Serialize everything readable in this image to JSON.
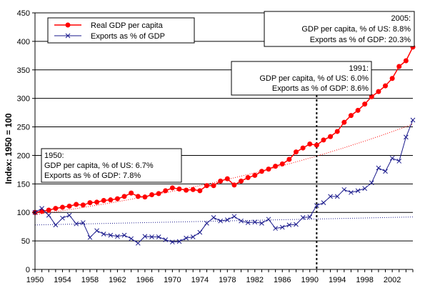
{
  "chart_data": {
    "type": "line",
    "ylabel": "Index: 1950 = 100",
    "xlim": [
      1950,
      2005
    ],
    "ylim": [
      0,
      450
    ],
    "yticks": [
      0,
      50,
      100,
      150,
      200,
      250,
      300,
      350,
      400,
      450
    ],
    "xticks": [
      1950,
      1954,
      1958,
      1962,
      1966,
      1970,
      1974,
      1978,
      1982,
      1986,
      1990,
      1994,
      1998,
      2002
    ],
    "grid": "horizontal",
    "legend_position": "top-left",
    "marker_year": 1991,
    "x": [
      1950,
      1951,
      1952,
      1953,
      1954,
      1955,
      1956,
      1957,
      1958,
      1959,
      1960,
      1961,
      1962,
      1963,
      1964,
      1965,
      1966,
      1967,
      1968,
      1969,
      1970,
      1971,
      1972,
      1973,
      1974,
      1975,
      1976,
      1977,
      1978,
      1979,
      1980,
      1981,
      1982,
      1983,
      1984,
      1985,
      1986,
      1987,
      1988,
      1989,
      1990,
      1991,
      1992,
      1993,
      1994,
      1995,
      1996,
      1997,
      1998,
      1999,
      2000,
      2001,
      2002,
      2003,
      2004,
      2005
    ],
    "series": [
      {
        "name": "Real GDP per capita",
        "color": "#ff0000",
        "marker": "circle",
        "values": [
          100,
          102,
          104,
          107,
          109,
          111,
          114,
          113,
          117,
          118,
          121,
          122,
          124,
          128,
          134,
          128,
          127,
          131,
          133,
          138,
          143,
          141,
          139,
          140,
          138,
          147,
          147,
          155,
          159,
          148,
          155,
          161,
          165,
          172,
          176,
          181,
          185,
          193,
          206,
          213,
          220,
          218,
          227,
          233,
          242,
          258,
          270,
          279,
          290,
          303,
          312,
          322,
          335,
          356,
          366,
          390
        ]
      },
      {
        "name": "Exports as % of GDP",
        "color": "#1a1a8c",
        "marker": "x",
        "values": [
          100,
          107,
          95,
          78,
          90,
          95,
          80,
          82,
          56,
          68,
          62,
          60,
          58,
          60,
          54,
          46,
          58,
          57,
          57,
          52,
          48,
          49,
          55,
          57,
          65,
          81,
          91,
          85,
          87,
          93,
          85,
          82,
          83,
          81,
          88,
          72,
          74,
          78,
          79,
          91,
          92,
          112,
          117,
          128,
          128,
          140,
          135,
          138,
          142,
          152,
          178,
          172,
          195,
          190,
          232,
          262
        ]
      }
    ],
    "trendlines": [
      {
        "series": "Real GDP per capita",
        "color": "#ff0000",
        "from": [
          1950,
          96
        ],
        "to": [
          2005,
          255
        ]
      },
      {
        "series": "Exports as % of GDP",
        "color": "#1a1a8c",
        "from": [
          1950,
          78
        ],
        "to": [
          2005,
          92
        ]
      }
    ],
    "annotations": [
      {
        "id": "1950",
        "lines": [
          "1950:",
          "GDP per capita, % of US: 6.7%",
          "Exports as % of GDP: 7.8%"
        ]
      },
      {
        "id": "1991",
        "lines": [
          "1991:",
          "GDP per capita, % of US: 6.0%",
          "Exports as % of GDP: 8.6%"
        ]
      },
      {
        "id": "2005",
        "lines": [
          "2005:",
          "GDP per capita, % of US: 8.8%",
          "Exports as % of GDP: 20.3%"
        ]
      }
    ]
  }
}
